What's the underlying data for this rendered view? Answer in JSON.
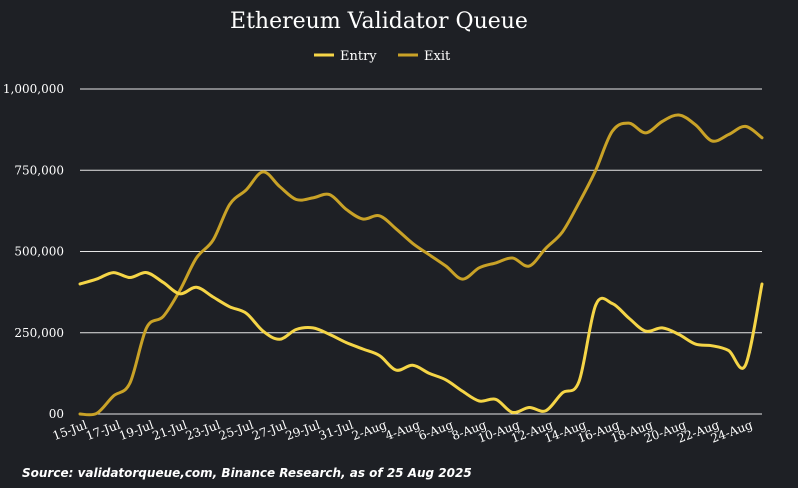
{
  "source_text": "Source: validatorqueue,com, Binance Research, as of 25 Aug 2025",
  "colors": {
    "background": "#1e2025",
    "entry": "#f5d547",
    "exit": "#c9a227",
    "text": "#ffffff",
    "grid": "#e6e6e6"
  },
  "chart_data": {
    "type": "line",
    "title": "Ethereum Validator Queue",
    "xlabel": "",
    "ylabel": "",
    "ylim": [
      0,
      1000000
    ],
    "yticks": [
      0,
      250000,
      500000,
      750000,
      1000000
    ],
    "ytick_labels": [
      "00",
      "250,000",
      "500,000",
      "750,000",
      "1,000,000"
    ],
    "grid": true,
    "legend_position": "top-center",
    "x": [
      "15-Jul",
      "16-Jul",
      "17-Jul",
      "18-Jul",
      "19-Jul",
      "20-Jul",
      "21-Jul",
      "22-Jul",
      "23-Jul",
      "24-Jul",
      "25-Jul",
      "26-Jul",
      "27-Jul",
      "28-Jul",
      "29-Jul",
      "30-Jul",
      "31-Jul",
      "1-Aug",
      "2-Aug",
      "3-Aug",
      "4-Aug",
      "5-Aug",
      "6-Aug",
      "7-Aug",
      "8-Aug",
      "9-Aug",
      "10-Aug",
      "11-Aug",
      "12-Aug",
      "13-Aug",
      "14-Aug",
      "15-Aug",
      "16-Aug",
      "17-Aug",
      "18-Aug",
      "19-Aug",
      "20-Aug",
      "21-Aug",
      "22-Aug",
      "23-Aug",
      "24-Aug",
      "25-Aug"
    ],
    "x_tick_labels": [
      "15-Jul",
      "17-Jul",
      "19-Jul",
      "21-Jul",
      "23-Jul",
      "25-Jul",
      "27-Jul",
      "29-Jul",
      "31-Jul",
      "2-Aug",
      "4-Aug",
      "6-Aug",
      "8-Aug",
      "10-Aug",
      "12-Aug",
      "14-Aug",
      "16-Aug",
      "18-Aug",
      "20-Aug",
      "22-Aug",
      "24-Aug"
    ],
    "series": [
      {
        "name": "Entry",
        "values": [
          400000,
          415000,
          435000,
          420000,
          435000,
          405000,
          370000,
          390000,
          360000,
          330000,
          310000,
          255000,
          230000,
          260000,
          265000,
          245000,
          220000,
          200000,
          180000,
          135000,
          150000,
          125000,
          105000,
          70000,
          40000,
          45000,
          5000,
          20000,
          10000,
          65000,
          100000,
          335000,
          340000,
          295000,
          255000,
          265000,
          245000,
          215000,
          210000,
          195000,
          150000,
          400000
        ]
      },
      {
        "name": "Exit",
        "values": [
          0,
          2000,
          55000,
          95000,
          265000,
          300000,
          380000,
          480000,
          535000,
          645000,
          690000,
          745000,
          700000,
          660000,
          665000,
          675000,
          630000,
          600000,
          610000,
          570000,
          525000,
          490000,
          455000,
          415000,
          450000,
          465000,
          480000,
          455000,
          510000,
          560000,
          650000,
          750000,
          870000,
          895000,
          865000,
          900000,
          920000,
          890000,
          840000,
          860000,
          885000,
          850000
        ]
      }
    ]
  }
}
